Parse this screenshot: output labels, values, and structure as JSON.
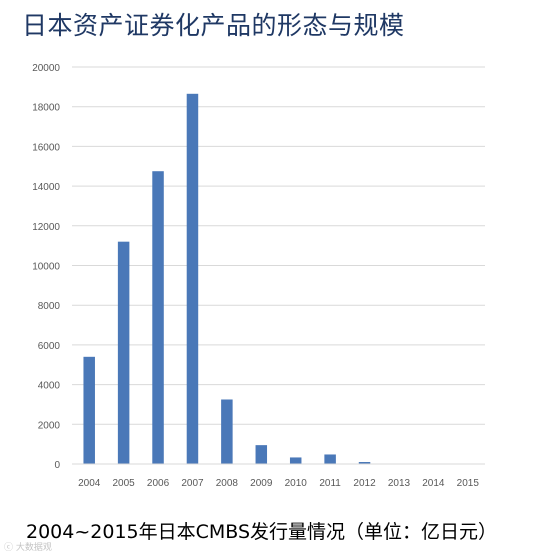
{
  "header": {
    "title": "日本资产证券化产品的形态与规模"
  },
  "caption": "2004~2015年日本CMBS发行量情况（单位：亿日元）",
  "watermark": "ⓒ 大数据观",
  "colors": {
    "bar": "#4a78b8",
    "grid": "#d9d9d9",
    "axis_text": "#595959",
    "title": "#1f3864"
  },
  "chart_data": {
    "type": "bar",
    "title": "",
    "xlabel": "",
    "ylabel": "",
    "categories": [
      "2004",
      "2005",
      "2006",
      "2007",
      "2008",
      "2009",
      "2010",
      "2011",
      "2012",
      "2013",
      "2014",
      "2015"
    ],
    "values": [
      5400,
      11200,
      14750,
      18650,
      3250,
      950,
      330,
      480,
      100,
      0,
      0,
      0
    ],
    "ylim": [
      0,
      20000
    ],
    "yticks": [
      0,
      2000,
      4000,
      6000,
      8000,
      10000,
      12000,
      14000,
      16000,
      18000,
      20000
    ],
    "grid": true,
    "legend": "none"
  }
}
